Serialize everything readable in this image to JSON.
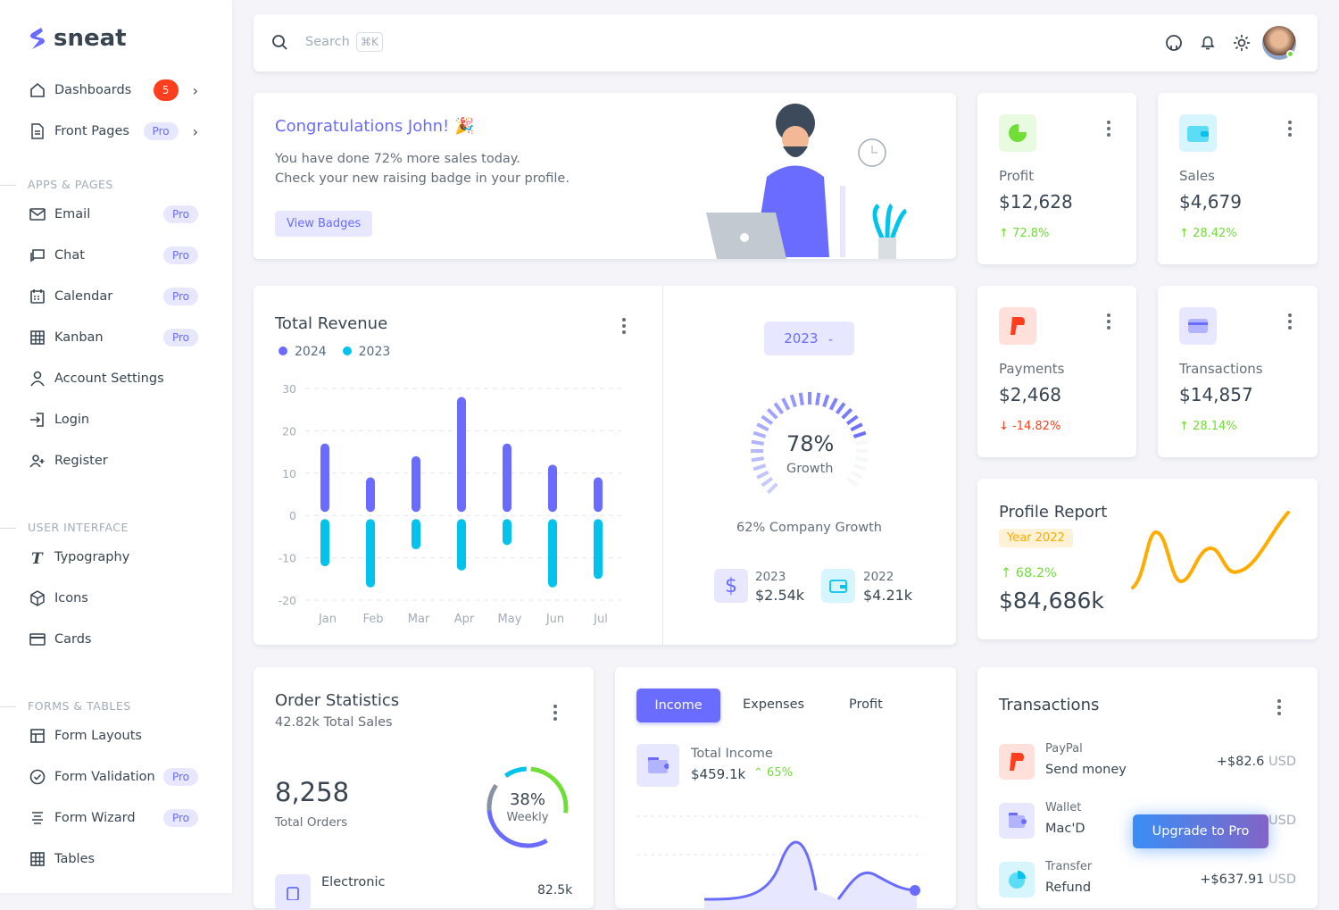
{
  "brand": {
    "name": "sneat",
    "accent": "#696cff"
  },
  "sidebar": {
    "items": [
      {
        "label": "Dashboards",
        "badge": "5",
        "icon": "home-icon"
      },
      {
        "label": "Front Pages",
        "badge": "Pro",
        "icon": "file-icon"
      }
    ],
    "sections": [
      {
        "title": "APPS & PAGES",
        "items": [
          {
            "label": "Email",
            "badge": "Pro",
            "icon": "mail-icon"
          },
          {
            "label": "Chat",
            "badge": "Pro",
            "icon": "chat-icon"
          },
          {
            "label": "Calendar",
            "badge": "Pro",
            "icon": "calendar-icon"
          },
          {
            "label": "Kanban",
            "badge": "Pro",
            "icon": "grid-icon"
          },
          {
            "label": "Account Settings",
            "icon": "user-icon"
          },
          {
            "label": "Login",
            "icon": "login-icon"
          },
          {
            "label": "Register",
            "icon": "user-plus-icon"
          }
        ]
      },
      {
        "title": "USER INTERFACE",
        "items": [
          {
            "label": "Typography",
            "icon": "type-icon"
          },
          {
            "label": "Icons",
            "icon": "cube-icon"
          },
          {
            "label": "Cards",
            "icon": "card-icon"
          }
        ]
      },
      {
        "title": "FORMS & TABLES",
        "items": [
          {
            "label": "Form Layouts",
            "icon": "layout-icon"
          },
          {
            "label": "Form Validation",
            "badge": "Pro",
            "icon": "check-circle-icon"
          },
          {
            "label": "Form Wizard",
            "badge": "Pro",
            "icon": "list-icon"
          },
          {
            "label": "Tables",
            "icon": "table-icon"
          }
        ]
      }
    ]
  },
  "navbar": {
    "search_placeholder": "Search",
    "shortcut": "⌘K"
  },
  "welcome": {
    "title": "Congratulations John! 🎉",
    "line1": "You have done 72% more sales today.",
    "line2": "Check your new raising badge in your profile.",
    "button": "View Badges"
  },
  "stats": [
    {
      "label": "Profit",
      "value": "$12,628",
      "change": "72.8%",
      "dir": "up",
      "icon_color": "#71dd37"
    },
    {
      "label": "Sales",
      "value": "$4,679",
      "change": "28.42%",
      "dir": "up",
      "icon_color": "#03c3ec"
    },
    {
      "label": "Payments",
      "value": "$2,468",
      "change": "-14.82%",
      "dir": "down",
      "icon_color": "#ff3e1d"
    },
    {
      "label": "Transactions",
      "value": "$14,857",
      "change": "28.14%",
      "dir": "up",
      "icon_color": "#696cff"
    }
  ],
  "revenue": {
    "title": "Total Revenue",
    "chart_data": {
      "type": "bar",
      "categories": [
        "Jan",
        "Feb",
        "Mar",
        "Apr",
        "May",
        "Jun",
        "Jul"
      ],
      "series": [
        {
          "name": "2024",
          "color": "#696cff",
          "values": [
            17,
            9,
            14,
            28,
            17,
            12,
            9
          ]
        },
        {
          "name": "2023",
          "color": "#03c3ec",
          "values": [
            -12,
            -17,
            -8,
            -13,
            -7,
            -17,
            -15
          ]
        }
      ],
      "yticks": [
        30,
        20,
        10,
        0,
        -10,
        -20
      ],
      "ylim": [
        -20,
        30
      ],
      "grid": true,
      "legend": "top-left"
    },
    "year_select": "2023",
    "growth_pct": "78%",
    "growth_pct_value": 78,
    "growth_label": "Growth",
    "company_growth": "62% Company Growth",
    "summary": [
      {
        "year": "2023",
        "value": "$2.54k"
      },
      {
        "year": "2022",
        "value": "$4.21k"
      }
    ]
  },
  "profile_report": {
    "title": "Profile Report",
    "badge": "Year 2022",
    "change": "68.2%",
    "value": "$84,686k"
  },
  "order_stats": {
    "title": "Order Statistics",
    "subtitle": "42.82k Total Sales",
    "count": "8,258",
    "count_label": "Total Orders",
    "ring_pct": "38%",
    "ring_value": 38,
    "ring_label": "Weekly",
    "first_item": "Electronic",
    "first_value": "82.5k"
  },
  "income": {
    "tabs": [
      "Income",
      "Expenses",
      "Profit"
    ],
    "active_tab": "Income",
    "label": "Total Income",
    "value": "$459.1k",
    "change": "65%"
  },
  "transactions": {
    "title": "Transactions",
    "items": [
      {
        "type": "PayPal",
        "desc": "Send money",
        "amount": "+$82.6",
        "cur": "USD"
      },
      {
        "type": "Wallet",
        "desc": "Mac'D",
        "amount": "",
        "cur": "USD"
      },
      {
        "type": "Transfer",
        "desc": "Refund",
        "amount": "+$637.91",
        "cur": "USD"
      }
    ]
  },
  "upgrade": "Upgrade to Pro"
}
